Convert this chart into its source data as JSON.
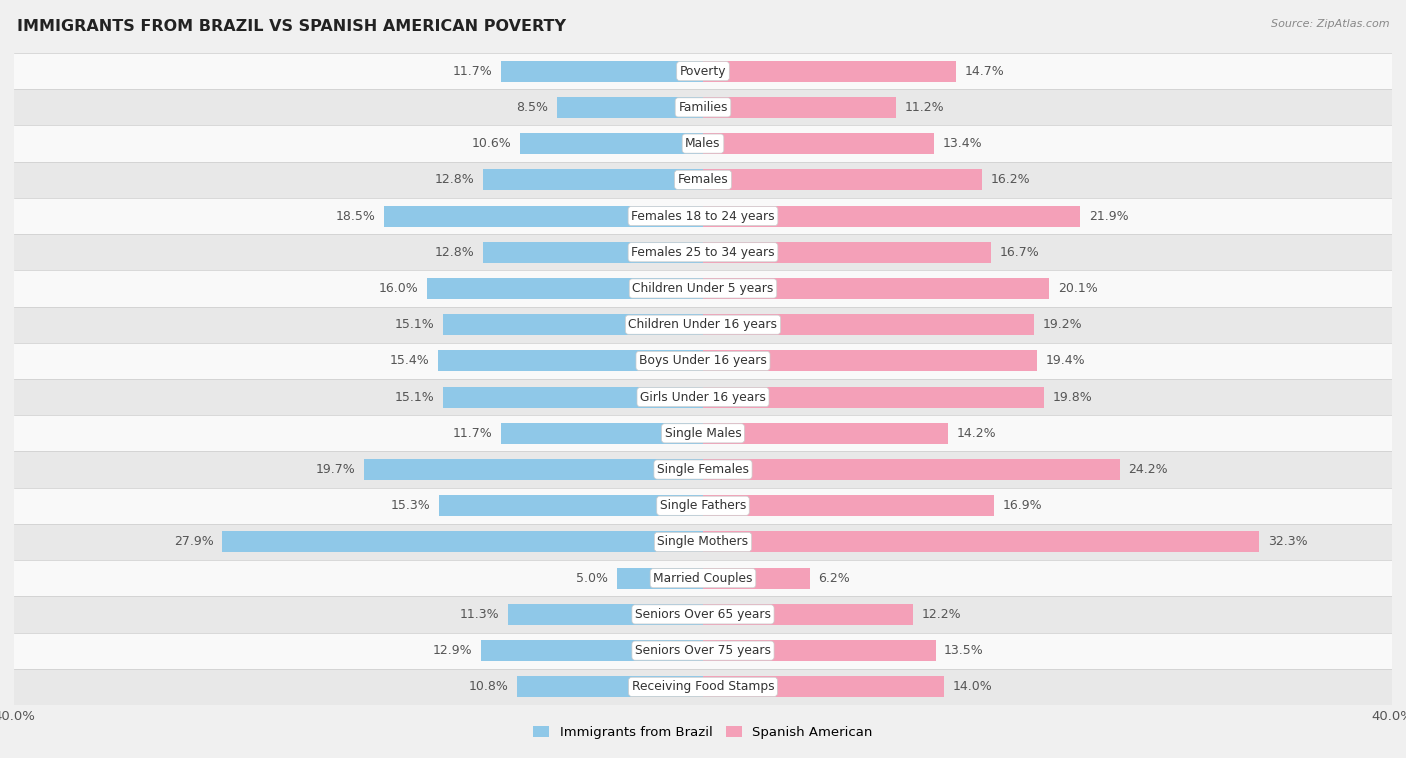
{
  "title": "IMMIGRANTS FROM BRAZIL VS SPANISH AMERICAN POVERTY",
  "source": "Source: ZipAtlas.com",
  "categories": [
    "Poverty",
    "Families",
    "Males",
    "Females",
    "Females 18 to 24 years",
    "Females 25 to 34 years",
    "Children Under 5 years",
    "Children Under 16 years",
    "Boys Under 16 years",
    "Girls Under 16 years",
    "Single Males",
    "Single Females",
    "Single Fathers",
    "Single Mothers",
    "Married Couples",
    "Seniors Over 65 years",
    "Seniors Over 75 years",
    "Receiving Food Stamps"
  ],
  "brazil_values": [
    11.7,
    8.5,
    10.6,
    12.8,
    18.5,
    12.8,
    16.0,
    15.1,
    15.4,
    15.1,
    11.7,
    19.7,
    15.3,
    27.9,
    5.0,
    11.3,
    12.9,
    10.8
  ],
  "spanish_values": [
    14.7,
    11.2,
    13.4,
    16.2,
    21.9,
    16.7,
    20.1,
    19.2,
    19.4,
    19.8,
    14.2,
    24.2,
    16.9,
    32.3,
    6.2,
    12.2,
    13.5,
    14.0
  ],
  "brazil_color": "#8fc8e8",
  "spanish_color": "#f4a0b8",
  "background_color": "#f0f0f0",
  "row_color_light": "#f9f9f9",
  "row_color_dark": "#e8e8e8",
  "bar_height": 0.58,
  "xlim": 40.0,
  "legend_brazil": "Immigrants from Brazil",
  "legend_spanish": "Spanish American",
  "label_color": "#555555",
  "value_fontsize": 9.0,
  "cat_fontsize": 8.8
}
